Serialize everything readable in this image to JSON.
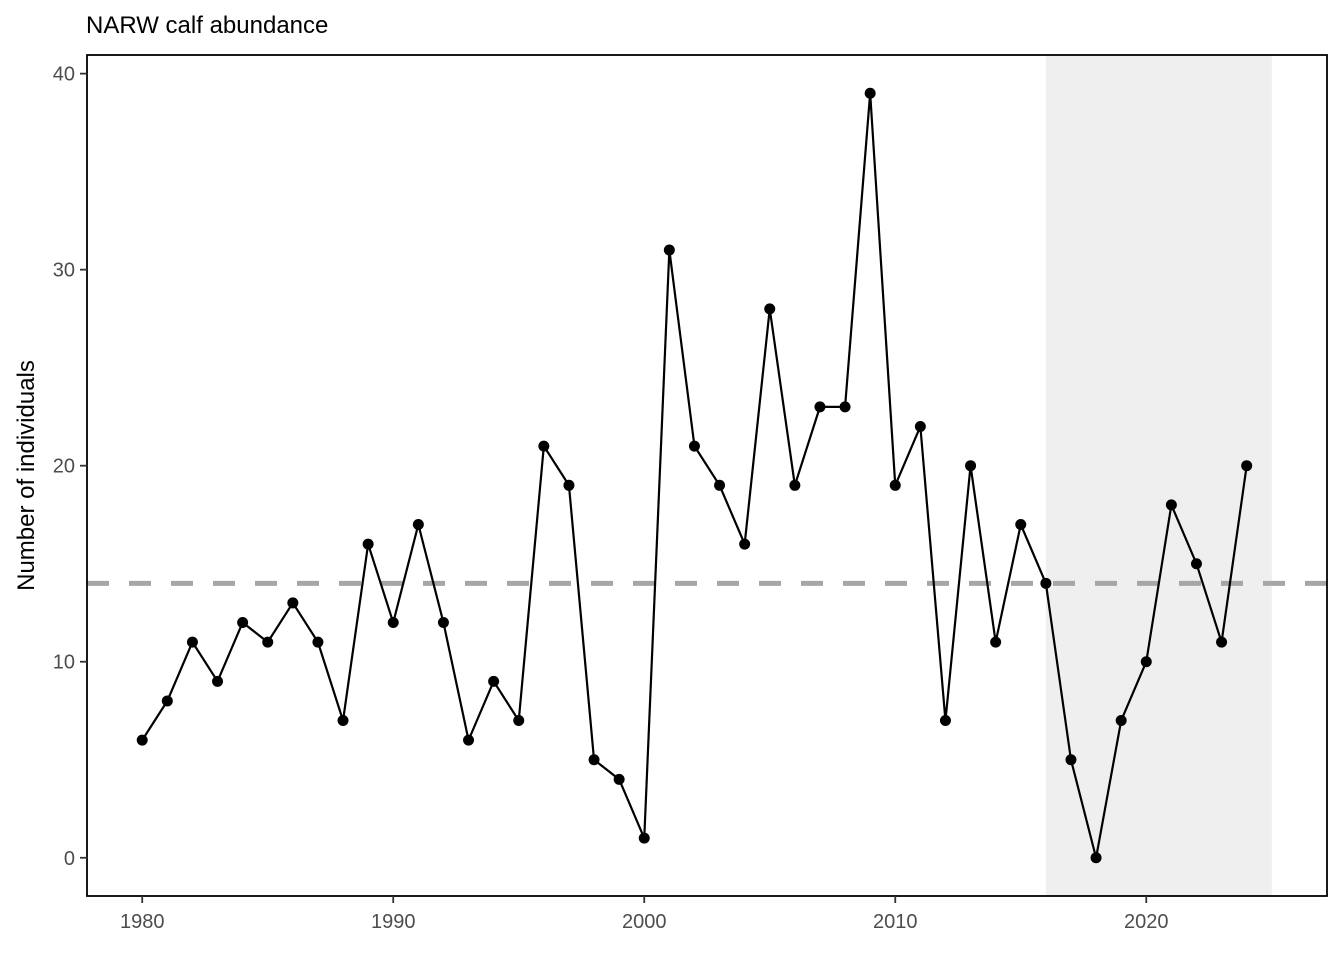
{
  "chart_data": {
    "type": "line",
    "title": "NARW calf abundance",
    "xlabel": "",
    "ylabel": "Number of individuals",
    "xlim": [
      1977.8,
      2027.2
    ],
    "ylim": [
      -1.95,
      40.95
    ],
    "x_ticks": [
      1980,
      1990,
      2000,
      2010,
      2020
    ],
    "y_ticks": [
      0,
      10,
      20,
      30,
      40
    ],
    "grid": false,
    "reference_line": {
      "y": 14,
      "style": "dashed",
      "color": "#a6a6a6"
    },
    "shaded_region": {
      "x_start": 2016,
      "x_end": 2025,
      "color": "#efefef"
    },
    "series": [
      {
        "color": "#000000",
        "x": [
          1980,
          1981,
          1982,
          1983,
          1984,
          1985,
          1986,
          1987,
          1988,
          1989,
          1990,
          1991,
          1992,
          1993,
          1994,
          1995,
          1996,
          1997,
          1998,
          1999,
          2000,
          2001,
          2002,
          2003,
          2004,
          2005,
          2006,
          2007,
          2008,
          2009,
          2010,
          2011,
          2012,
          2013,
          2014,
          2015,
          2016,
          2017,
          2018,
          2019,
          2020,
          2021,
          2022,
          2023,
          2024
        ],
        "values": [
          6,
          8,
          11,
          9,
          12,
          11,
          13,
          11,
          7,
          16,
          12,
          17,
          12,
          6,
          9,
          7,
          21,
          19,
          5,
          4,
          1,
          31,
          21,
          19,
          16,
          28,
          19,
          23,
          23,
          39,
          19,
          22,
          7,
          20,
          11,
          17,
          14,
          5,
          0,
          7,
          10,
          18,
          15,
          11,
          20
        ]
      }
    ]
  }
}
